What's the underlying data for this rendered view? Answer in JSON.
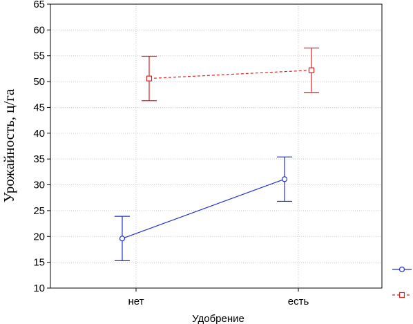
{
  "chart_data": {
    "type": "line",
    "title": "",
    "xlabel": "Удобрение",
    "ylabel": "Урожайность, ц/га",
    "categories": [
      "нет",
      "есть"
    ],
    "ylim": [
      10,
      65
    ],
    "yticks": [
      10,
      15,
      20,
      25,
      30,
      35,
      40,
      45,
      50,
      55,
      60,
      65
    ],
    "grid": true,
    "legend_position": "bottom-right",
    "series": [
      {
        "color": "#1f2fd0",
        "line_style": "solid",
        "marker": "circle",
        "values": [
          19.6,
          31.1
        ],
        "error_low": [
          15.3,
          26.8
        ],
        "error_high": [
          23.9,
          35.4
        ]
      },
      {
        "color": "#e02020",
        "line_style": "dashed",
        "marker": "square",
        "values": [
          50.6,
          52.2
        ],
        "error_low": [
          46.3,
          47.9
        ],
        "error_high": [
          54.9,
          56.5
        ]
      }
    ]
  }
}
